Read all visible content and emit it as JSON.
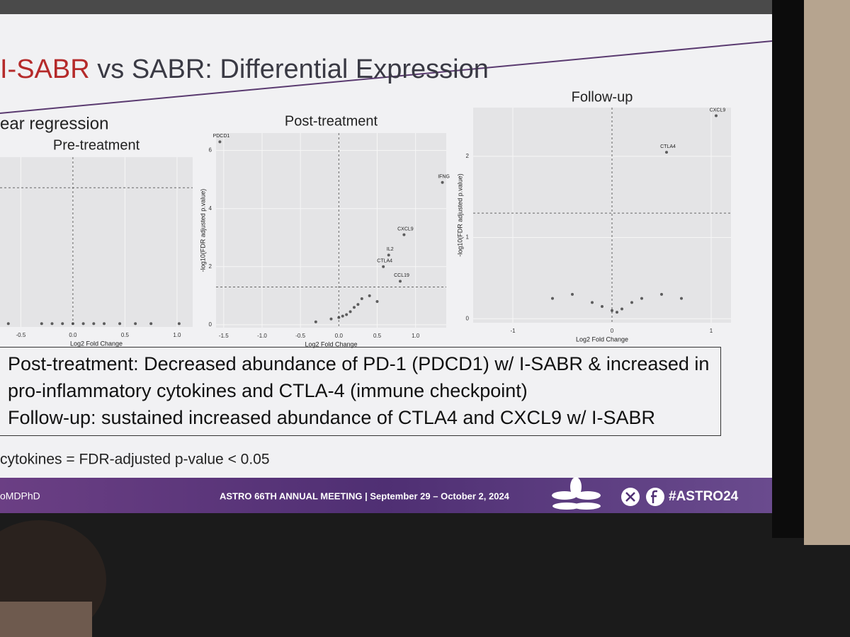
{
  "slide": {
    "title_highlight": "I-SABR",
    "title_rest": " vs SABR: Differential Expression",
    "subtitle": "ear regression",
    "bullets": [
      "Post-treatment: Decreased abundance of PD-1 (PDCD1) w/ I-SABR & increased in pro-inflammatory cytokines and CTLA-4 (immune checkpoint)",
      "Follow-up: sustained increased abundance of CTLA4 and CXCL9 w/ I-SABR"
    ],
    "footnote": "cytokines = FDR-adjusted p-value < 0.05",
    "footer_handle": "oMDPhD",
    "footer_meeting": "ASTRO 66TH ANNUAL MEETING  |  September 29 – October 2, 2024",
    "footer_hashtag": "#ASTRO24"
  },
  "chart_data": [
    {
      "type": "scatter",
      "title": "Pre-treatment",
      "x_label": "Log2 Fold Change",
      "x": [
        -0.62,
        -0.3,
        -0.2,
        -0.1,
        0,
        0.1,
        0.2,
        0.3,
        0.45,
        0.6,
        0.75,
        1.02
      ],
      "values": [
        0.02,
        0.02,
        0.02,
        0.02,
        0.02,
        0.02,
        0.02,
        0.02,
        0.02,
        0.02,
        0.02,
        0.02
      ],
      "xlim": [
        -0.7,
        1.15
      ],
      "ylim": [
        0,
        1
      ],
      "xticks": [
        -0.5,
        {
          "value": 0,
          "label": "0.0"
        },
        0.5,
        {
          "value": 1,
          "label": "1.0"
        }
      ],
      "yticks": [],
      "hline": 0.82,
      "vline": 0,
      "color": "#222222",
      "grid": true
    },
    {
      "type": "scatter",
      "title": "Post-treatment",
      "x_label": "Log2 Fold Change",
      "y_label": "-log10(FDR adjusted p.value)",
      "x": [
        -1.55,
        1.35,
        0.85,
        0.65,
        0.58,
        0.8,
        -0.3,
        -0.1,
        0,
        0.05,
        0.1,
        0.15,
        0.2,
        0.25,
        0.3,
        0.4,
        0.5
      ],
      "values": [
        6.3,
        4.9,
        3.1,
        2.4,
        2.0,
        1.5,
        0.1,
        0.2,
        0.25,
        0.3,
        0.35,
        0.45,
        0.6,
        0.7,
        0.9,
        1.0,
        0.8
      ],
      "point_labels": [
        "PDCD1",
        "IFNG",
        "CXCL9",
        "IL2",
        "CTLA4",
        "CCL19",
        null,
        null,
        null,
        null,
        null,
        null,
        null,
        null,
        null,
        null,
        null
      ],
      "xlim": [
        -1.6,
        1.4
      ],
      "ylim": [
        -0.1,
        6.6
      ],
      "xticks": [
        -1.5,
        {
          "value": -1,
          "label": "-1.0"
        },
        -0.5,
        {
          "value": 0,
          "label": "0.0"
        },
        0.5,
        {
          "value": 1,
          "label": "1.0"
        }
      ],
      "yticks": [
        0,
        2,
        4,
        6
      ],
      "hline": 1.3,
      "vline": 0,
      "color": "#222222",
      "grid": true
    },
    {
      "type": "scatter",
      "title": "Follow-up",
      "x_label": "Log2 Fold Change",
      "y_label": "-log10(FDR adjusted p.value)",
      "x": [
        1.05,
        0.55,
        -0.6,
        -0.4,
        -0.2,
        -0.1,
        0,
        0.05,
        0.1,
        0.2,
        0.3,
        0.5,
        0.7
      ],
      "values": [
        2.5,
        2.05,
        0.25,
        0.3,
        0.2,
        0.15,
        0.1,
        0.08,
        0.12,
        0.2,
        0.25,
        0.3,
        0.25
      ],
      "point_labels": [
        "CXCL9",
        "CTLA4",
        null,
        null,
        null,
        null,
        null,
        null,
        null,
        null,
        null,
        null,
        null
      ],
      "xlim": [
        -1.4,
        1.2
      ],
      "ylim": [
        -0.05,
        2.6
      ],
      "xticks": [
        -1,
        0,
        1
      ],
      "yticks": [
        0,
        1,
        2
      ],
      "hline": 1.3,
      "vline": 0,
      "color": "#222222",
      "grid": true
    }
  ]
}
